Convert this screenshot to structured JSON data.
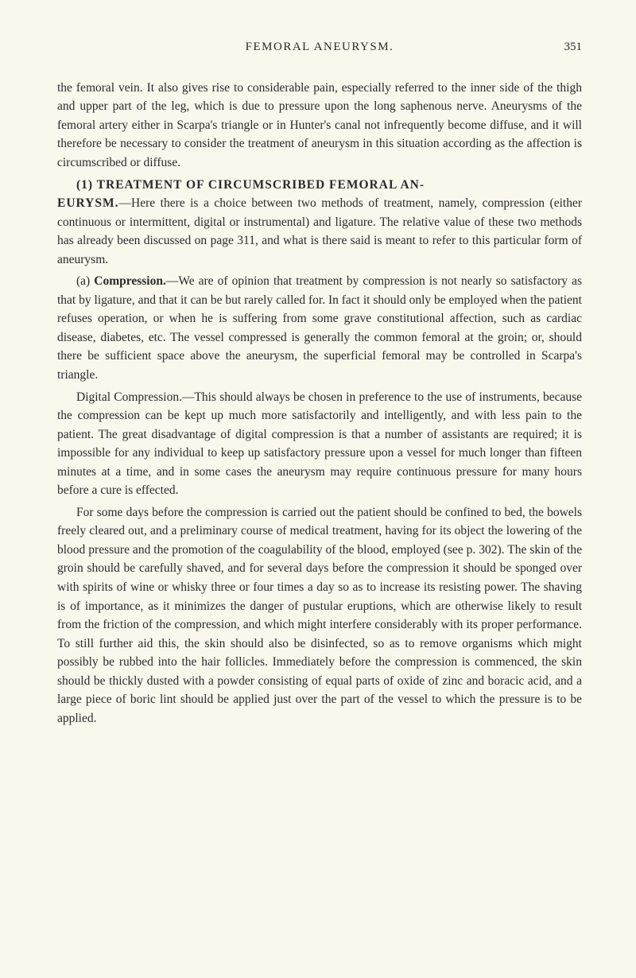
{
  "header": {
    "title": "FEMORAL ANEURYSM.",
    "page_number": "351"
  },
  "paragraphs": {
    "p1": "the femoral vein. It also gives rise to considerable pain, especially referred to the inner side of the thigh and upper part of the leg, which is due to pressure upon the long saphenous nerve. Aneurysms of the femoral artery either in Scarpa's triangle or in Hunter's canal not infrequently become diffuse, and it will therefore be necessary to consider the treatment of aneurysm in this situation according as the affection is circumscribed or diffuse.",
    "p2_heading_a": "(1) TREATMENT OF CIRCUMSCRIBED FEMORAL AN-",
    "p2_heading_b": "EURYSM.",
    "p2_body": "—Here there is a choice between two methods of treatment, namely, compression (either continuous or intermittent, digital or instrumental) and ligature. The relative value of these two methods has already been discussed on page 311, and what is there said is meant to refer to this particular form of aneurysm.",
    "p3_lead": "(a) ",
    "p3_bold": "Compression.",
    "p3_body": "—We are of opinion that treatment by compression is not nearly so satisfactory as that by ligature, and that it can be but rarely called for. In fact it should only be employed when the patient refuses operation, or when he is suffering from some grave constitutional affection, such as cardiac disease, diabetes, etc. The vessel compressed is generally the common femoral at the groin; or, should there be sufficient space above the aneurysm, the superficial femoral may be controlled in Scarpa's triangle.",
    "p4_lead": "Digital Compression.",
    "p4_body": "—This should always be chosen in preference to the use of instruments, because the compression can be kept up much more satisfactorily and intelligently, and with less pain to the patient. The great disadvantage of digital compression is that a number of assistants are required; it is impossible for any individual to keep up satisfactory pressure upon a vessel for much longer than fifteen minutes at a time, and in some cases the aneurysm may require continuous pressure for many hours before a cure is effected.",
    "p5": "For some days before the compression is carried out the patient should be confined to bed, the bowels freely cleared out, and a preliminary course of medical treatment, having for its object the lowering of the blood pressure and the promotion of the coagulability of the blood, employed (see p. 302). The skin of the groin should be carefully shaved, and for several days before the compression it should be sponged over with spirits of wine or whisky three or four times a day so as to increase its resisting power. The shaving is of importance, as it minimizes the danger of pustular eruptions, which are otherwise likely to result from the friction of the compression, and which might interfere considerably with its proper performance. To still further aid this, the skin should also be disinfected, so as to remove organisms which might possibly be rubbed into the hair follicles. Immediately before the compression is commenced, the skin should be thickly dusted with a powder consisting of equal parts of oxide of zinc and boracic acid, and a large piece of boric lint should be applied just over the part of the vessel to which the pressure is to be applied."
  }
}
